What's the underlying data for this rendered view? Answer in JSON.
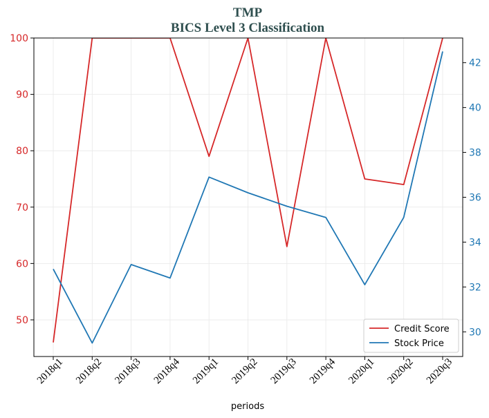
{
  "chart_data": {
    "type": "line",
    "title": "TMP",
    "subtitle": "BICS Level 3 Classification",
    "xlabel": "periods",
    "categories": [
      "2018q1",
      "2018q2",
      "2018q3",
      "2018q4",
      "2019q1",
      "2019q2",
      "2019q3",
      "2019q4",
      "2020q1",
      "2020q2",
      "2020q3"
    ],
    "grid": true,
    "legend_position": "lower-right",
    "left_axis": {
      "ylim": [
        43.5,
        100
      ],
      "ticks": [
        50,
        60,
        70,
        80,
        90,
        100
      ],
      "tick_labels": [
        "50",
        "60",
        "70",
        "80",
        "90",
        "100"
      ],
      "color": "#d62728"
    },
    "right_axis": {
      "ylim": [
        28.9,
        43.1
      ],
      "ticks": [
        30,
        32,
        34,
        36,
        38,
        40,
        42
      ],
      "tick_labels": [
        "30",
        "32",
        "34",
        "36",
        "38",
        "40",
        "42"
      ],
      "color": "#1f77b4"
    },
    "series": [
      {
        "name": "Credit Score",
        "axis": "left",
        "color": "#d62728",
        "values": [
          46,
          100,
          100,
          100,
          79,
          100,
          63,
          100,
          75,
          74,
          100
        ]
      },
      {
        "name": "Stock Price",
        "axis": "right",
        "color": "#1f77b4",
        "values": [
          32.8,
          29.5,
          33.0,
          32.4,
          36.9,
          36.2,
          35.6,
          35.1,
          32.1,
          35.1,
          42.5
        ]
      }
    ]
  }
}
